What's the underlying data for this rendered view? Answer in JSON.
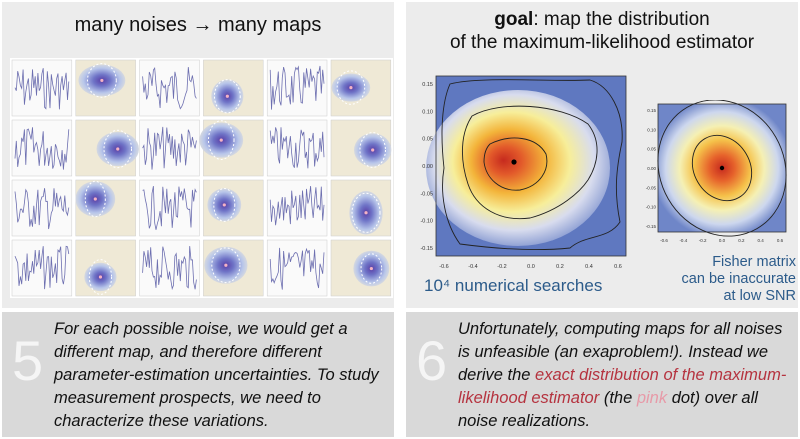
{
  "left_panel": {
    "title": "many noises → many maps"
  },
  "right_panel": {
    "title_bold": "goal",
    "title_rest": ": map the distribution",
    "title_line2": "of the maximum-likelihood estimator",
    "label_searches": "10⁴ numerical searches",
    "fisher_line1": "Fisher matrix",
    "fisher_line2": "can be inaccurate",
    "fisher_line3": "at low SNR",
    "big_xticks": [
      "-0.6",
      "-0.4",
      "-0.2",
      "0.0",
      "0.2",
      "0.4",
      "0.6"
    ],
    "big_yticks": [
      "0.15",
      "0.10",
      "0.05",
      "0.00",
      "-0.05",
      "-0.10",
      "-0.15"
    ],
    "small_xticks": [
      "-0.6",
      "-0.4",
      "-0.2",
      "0.0",
      "0.2",
      "0.4",
      "0.6"
    ],
    "small_yticks": [
      "0.15",
      "0.10",
      "0.05",
      "0.00",
      "-0.05",
      "-0.10",
      "-0.15"
    ]
  },
  "caption_left": {
    "number": "5",
    "text": "For each possible noise, we would get a different map, and therefore different parameter-estimation uncertainties. To study measurement prospects, we need to characterize these variations."
  },
  "caption_right": {
    "number": "6",
    "part1": "Unfortunately, computing maps for all noises is unfeasible (an exaproblem!). Instead we derive the ",
    "accent": "exact distribution of the maximum-likelihood estimator",
    "part2": " (the ",
    "pink": "pink",
    "part3": " dot) over all noise realizations."
  },
  "colors": {
    "panel_bg": "#ececec",
    "caption_bg": "#d9d9d9",
    "caption_number": "#f5f5f5",
    "accent": "#b5333f",
    "pink": "#e79aa8",
    "label_blue": "#2c5b8a"
  }
}
